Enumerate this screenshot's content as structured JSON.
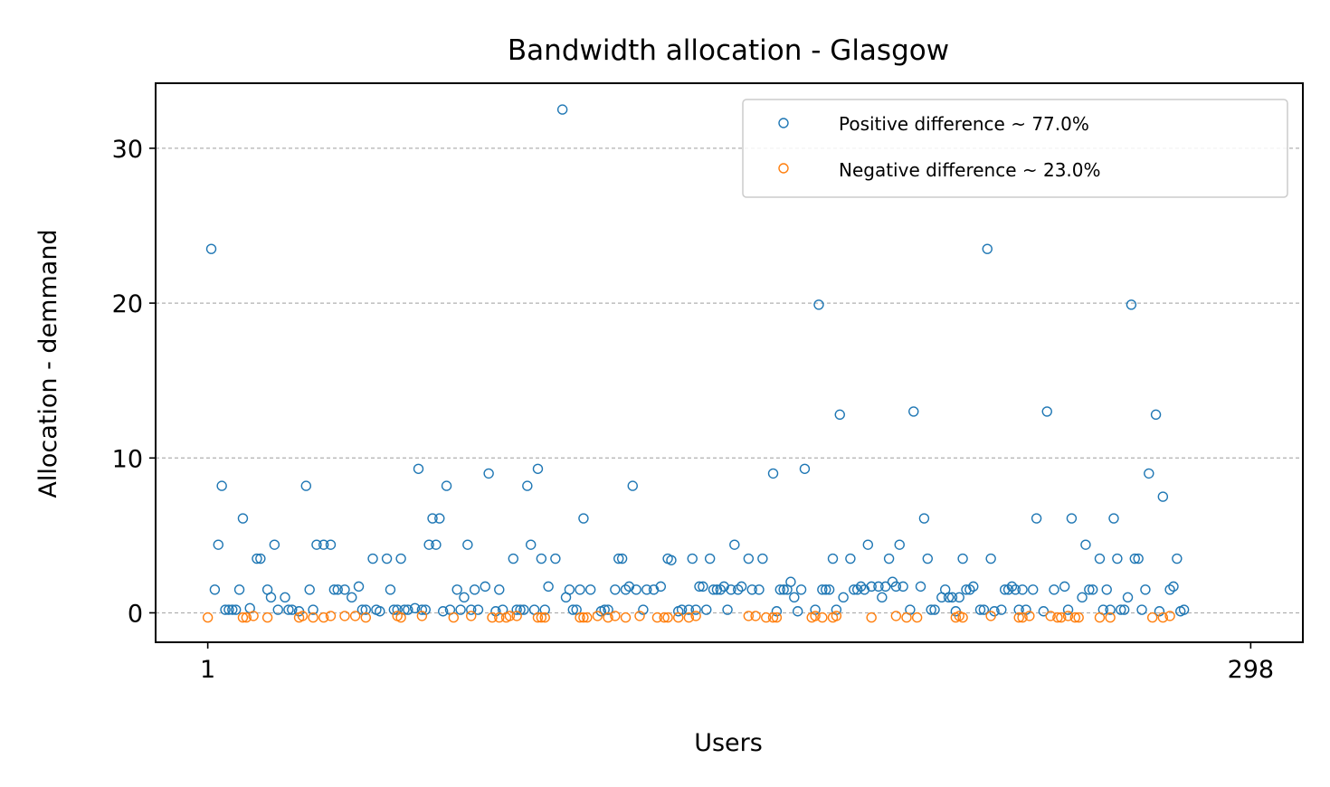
{
  "chart_data": {
    "type": "scatter",
    "title": "Bandwidth allocation - Glasgow",
    "xlabel": "Users",
    "ylabel": "Allocation - demmand",
    "xlim": [
      -13.85,
      312.85
    ],
    "ylim": [
      -1.9,
      34.2
    ],
    "xticks": [
      1,
      298
    ],
    "xtick_labels": [
      "1",
      "298"
    ],
    "yticks": [
      0,
      10,
      20,
      30
    ],
    "ytick_labels": [
      "0",
      "10",
      "20",
      "30"
    ],
    "grid": "y-dashed",
    "legend_position": "upper right",
    "series": [
      {
        "name": "Positive difference ~ 77.0%",
        "color": "#1f77b4",
        "points": [
          [
            2,
            23.5
          ],
          [
            3,
            1.5
          ],
          [
            4,
            4.4
          ],
          [
            5,
            8.2
          ],
          [
            6,
            0.2
          ],
          [
            7,
            0.2
          ],
          [
            8,
            0.2
          ],
          [
            9,
            0.2
          ],
          [
            10,
            1.5
          ],
          [
            11,
            6.1
          ],
          [
            13,
            0.3
          ],
          [
            15,
            3.5
          ],
          [
            16,
            3.5
          ],
          [
            18,
            1.5
          ],
          [
            19,
            1.0
          ],
          [
            20,
            4.4
          ],
          [
            21,
            0.2
          ],
          [
            23,
            1.0
          ],
          [
            24,
            0.2
          ],
          [
            25,
            0.2
          ],
          [
            27,
            0.1
          ],
          [
            29,
            8.2
          ],
          [
            30,
            1.5
          ],
          [
            31,
            0.2
          ],
          [
            32,
            4.4
          ],
          [
            34,
            4.4
          ],
          [
            36,
            4.4
          ],
          [
            37,
            1.5
          ],
          [
            38,
            1.5
          ],
          [
            40,
            1.5
          ],
          [
            42,
            1.0
          ],
          [
            44,
            1.7
          ],
          [
            45,
            0.2
          ],
          [
            46,
            0.2
          ],
          [
            48,
            3.5
          ],
          [
            49,
            0.2
          ],
          [
            50,
            0.1
          ],
          [
            52,
            3.5
          ],
          [
            53,
            1.5
          ],
          [
            54,
            0.2
          ],
          [
            55,
            0.2
          ],
          [
            56,
            3.5
          ],
          [
            57,
            0.2
          ],
          [
            58,
            0.2
          ],
          [
            60,
            0.3
          ],
          [
            61,
            9.3
          ],
          [
            62,
            0.2
          ],
          [
            63,
            0.2
          ],
          [
            64,
            4.4
          ],
          [
            65,
            6.1
          ],
          [
            66,
            4.4
          ],
          [
            67,
            6.1
          ],
          [
            68,
            0.1
          ],
          [
            69,
            8.2
          ],
          [
            70,
            0.2
          ],
          [
            72,
            1.5
          ],
          [
            73,
            0.2
          ],
          [
            74,
            1.0
          ],
          [
            75,
            4.4
          ],
          [
            76,
            0.2
          ],
          [
            77,
            1.5
          ],
          [
            78,
            0.2
          ],
          [
            80,
            1.7
          ],
          [
            81,
            9.0
          ],
          [
            83,
            0.1
          ],
          [
            84,
            1.5
          ],
          [
            85,
            0.2
          ],
          [
            88,
            3.5
          ],
          [
            89,
            0.2
          ],
          [
            90,
            0.2
          ],
          [
            91,
            0.2
          ],
          [
            92,
            8.2
          ],
          [
            93,
            4.4
          ],
          [
            94,
            0.2
          ],
          [
            95,
            9.3
          ],
          [
            96,
            3.5
          ],
          [
            97,
            0.2
          ],
          [
            98,
            1.7
          ],
          [
            100,
            3.5
          ],
          [
            102,
            32.5
          ],
          [
            103,
            1.0
          ],
          [
            104,
            1.5
          ],
          [
            105,
            0.2
          ],
          [
            106,
            0.2
          ],
          [
            107,
            1.5
          ],
          [
            108,
            6.1
          ],
          [
            110,
            1.5
          ],
          [
            113,
            0.1
          ],
          [
            114,
            0.2
          ],
          [
            115,
            0.2
          ],
          [
            117,
            1.5
          ],
          [
            118,
            3.5
          ],
          [
            119,
            3.5
          ],
          [
            120,
            1.5
          ],
          [
            121,
            1.7
          ],
          [
            122,
            8.2
          ],
          [
            123,
            1.5
          ],
          [
            125,
            0.2
          ],
          [
            126,
            1.5
          ],
          [
            128,
            1.5
          ],
          [
            130,
            1.7
          ],
          [
            132,
            3.5
          ],
          [
            133,
            3.4
          ],
          [
            135,
            0.1
          ],
          [
            136,
            0.2
          ],
          [
            138,
            0.2
          ],
          [
            139,
            3.5
          ],
          [
            140,
            0.2
          ],
          [
            141,
            1.7
          ],
          [
            142,
            1.7
          ],
          [
            143,
            0.2
          ],
          [
            144,
            3.5
          ],
          [
            145,
            1.5
          ],
          [
            146,
            1.5
          ],
          [
            147,
            1.5
          ],
          [
            148,
            1.7
          ],
          [
            149,
            0.2
          ],
          [
            150,
            1.5
          ],
          [
            151,
            4.4
          ],
          [
            152,
            1.5
          ],
          [
            153,
            1.7
          ],
          [
            155,
            3.5
          ],
          [
            156,
            1.5
          ],
          [
            158,
            1.5
          ],
          [
            159,
            3.5
          ],
          [
            162,
            9.0
          ],
          [
            163,
            0.1
          ],
          [
            164,
            1.5
          ],
          [
            165,
            1.5
          ],
          [
            166,
            1.5
          ],
          [
            167,
            2.0
          ],
          [
            168,
            1.0
          ],
          [
            169,
            0.1
          ],
          [
            170,
            1.5
          ],
          [
            171,
            9.3
          ],
          [
            174,
            0.2
          ],
          [
            175,
            19.9
          ],
          [
            176,
            1.5
          ],
          [
            177,
            1.5
          ],
          [
            178,
            1.5
          ],
          [
            179,
            3.5
          ],
          [
            180,
            0.2
          ],
          [
            181,
            12.8
          ],
          [
            182,
            1.0
          ],
          [
            184,
            3.5
          ],
          [
            185,
            1.5
          ],
          [
            186,
            1.5
          ],
          [
            187,
            1.7
          ],
          [
            188,
            1.5
          ],
          [
            189,
            4.4
          ],
          [
            190,
            1.7
          ],
          [
            192,
            1.7
          ],
          [
            193,
            1.0
          ],
          [
            194,
            1.7
          ],
          [
            195,
            3.5
          ],
          [
            196,
            2.0
          ],
          [
            197,
            1.7
          ],
          [
            198,
            4.4
          ],
          [
            199,
            1.7
          ],
          [
            201,
            0.2
          ],
          [
            202,
            13.0
          ],
          [
            204,
            1.7
          ],
          [
            205,
            6.1
          ],
          [
            206,
            3.5
          ],
          [
            207,
            0.2
          ],
          [
            208,
            0.2
          ],
          [
            210,
            1.0
          ],
          [
            211,
            1.5
          ],
          [
            212,
            1.0
          ],
          [
            213,
            1.0
          ],
          [
            214,
            0.1
          ],
          [
            215,
            1.0
          ],
          [
            216,
            3.5
          ],
          [
            217,
            1.5
          ],
          [
            218,
            1.5
          ],
          [
            219,
            1.7
          ],
          [
            221,
            0.2
          ],
          [
            222,
            0.2
          ],
          [
            223,
            23.5
          ],
          [
            224,
            3.5
          ],
          [
            225,
            0.1
          ],
          [
            227,
            0.2
          ],
          [
            228,
            1.5
          ],
          [
            229,
            1.5
          ],
          [
            230,
            1.7
          ],
          [
            231,
            1.5
          ],
          [
            232,
            0.2
          ],
          [
            233,
            1.5
          ],
          [
            234,
            0.2
          ],
          [
            236,
            1.5
          ],
          [
            237,
            6.1
          ],
          [
            239,
            0.1
          ],
          [
            240,
            13.0
          ],
          [
            242,
            1.5
          ],
          [
            245,
            1.7
          ],
          [
            246,
            0.2
          ],
          [
            247,
            6.1
          ],
          [
            250,
            1.0
          ],
          [
            251,
            4.4
          ],
          [
            252,
            1.5
          ],
          [
            253,
            1.5
          ],
          [
            255,
            3.5
          ],
          [
            256,
            0.2
          ],
          [
            257,
            1.5
          ],
          [
            258,
            0.2
          ],
          [
            259,
            6.1
          ],
          [
            260,
            3.5
          ],
          [
            261,
            0.2
          ],
          [
            262,
            0.2
          ],
          [
            263,
            1.0
          ],
          [
            264,
            19.9
          ],
          [
            265,
            3.5
          ],
          [
            266,
            3.5
          ],
          [
            267,
            0.2
          ],
          [
            268,
            1.5
          ],
          [
            269,
            9.0
          ],
          [
            271,
            12.8
          ],
          [
            272,
            0.1
          ],
          [
            273,
            7.5
          ],
          [
            275,
            1.5
          ],
          [
            276,
            1.7
          ],
          [
            277,
            3.5
          ],
          [
            278,
            0.1
          ],
          [
            279,
            0.2
          ]
        ]
      },
      {
        "name": "Negative difference ~ 23.0%",
        "color": "#ff7f0e",
        "points": [
          [
            1,
            -0.3
          ],
          [
            11,
            -0.3
          ],
          [
            12,
            -0.3
          ],
          [
            14,
            -0.2
          ],
          [
            18,
            -0.3
          ],
          [
            27,
            -0.3
          ],
          [
            28,
            -0.2
          ],
          [
            31,
            -0.3
          ],
          [
            34,
            -0.3
          ],
          [
            36,
            -0.2
          ],
          [
            40,
            -0.2
          ],
          [
            43,
            -0.2
          ],
          [
            46,
            -0.3
          ],
          [
            55,
            -0.2
          ],
          [
            56,
            -0.3
          ],
          [
            62,
            -0.2
          ],
          [
            71,
            -0.3
          ],
          [
            76,
            -0.2
          ],
          [
            82,
            -0.3
          ],
          [
            84,
            -0.3
          ],
          [
            86,
            -0.3
          ],
          [
            87,
            -0.2
          ],
          [
            89,
            -0.2
          ],
          [
            95,
            -0.3
          ],
          [
            96,
            -0.3
          ],
          [
            97,
            -0.3
          ],
          [
            107,
            -0.3
          ],
          [
            108,
            -0.3
          ],
          [
            109,
            -0.3
          ],
          [
            112,
            -0.2
          ],
          [
            115,
            -0.3
          ],
          [
            117,
            -0.2
          ],
          [
            120,
            -0.3
          ],
          [
            124,
            -0.2
          ],
          [
            129,
            -0.3
          ],
          [
            131,
            -0.3
          ],
          [
            132,
            -0.3
          ],
          [
            135,
            -0.3
          ],
          [
            138,
            -0.3
          ],
          [
            140,
            -0.2
          ],
          [
            155,
            -0.2
          ],
          [
            157,
            -0.2
          ],
          [
            160,
            -0.3
          ],
          [
            162,
            -0.3
          ],
          [
            163,
            -0.3
          ],
          [
            173,
            -0.3
          ],
          [
            174,
            -0.2
          ],
          [
            176,
            -0.3
          ],
          [
            179,
            -0.3
          ],
          [
            180,
            -0.2
          ],
          [
            190,
            -0.3
          ],
          [
            197,
            -0.2
          ],
          [
            200,
            -0.3
          ],
          [
            203,
            -0.3
          ],
          [
            214,
            -0.3
          ],
          [
            215,
            -0.2
          ],
          [
            216,
            -0.3
          ],
          [
            224,
            -0.2
          ],
          [
            232,
            -0.3
          ],
          [
            233,
            -0.3
          ],
          [
            235,
            -0.2
          ],
          [
            241,
            -0.2
          ],
          [
            243,
            -0.3
          ],
          [
            244,
            -0.3
          ],
          [
            246,
            -0.2
          ],
          [
            248,
            -0.3
          ],
          [
            249,
            -0.3
          ],
          [
            255,
            -0.3
          ],
          [
            258,
            -0.3
          ],
          [
            270,
            -0.3
          ],
          [
            273,
            -0.3
          ],
          [
            275,
            -0.2
          ]
        ]
      }
    ]
  }
}
